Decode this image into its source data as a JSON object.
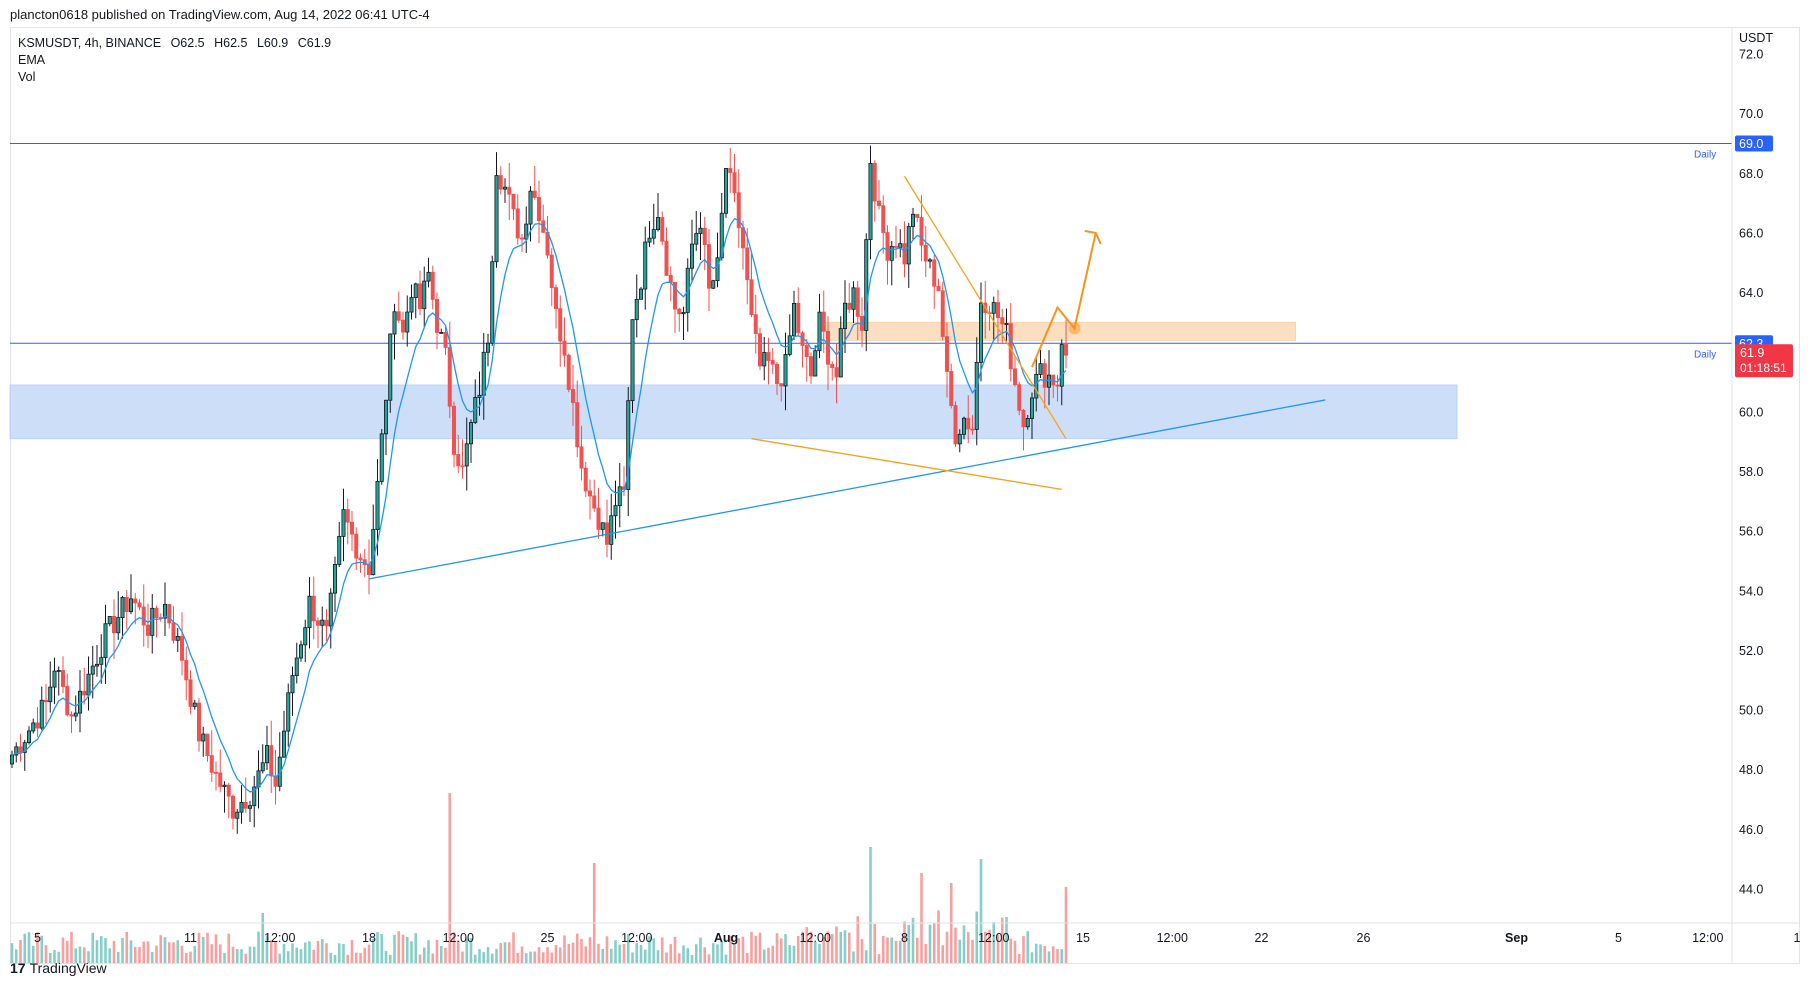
{
  "header": {
    "publish_text": "plancton0618 published on TradingView.com, Aug 14, 2022 06:41 UTC-4"
  },
  "legend": {
    "symbol": "KSMUSDT, 4h, BINANCE",
    "open": "O62.5",
    "high": "H62.5",
    "low": "L60.9",
    "close": "C61.9",
    "indicator1": "EMA",
    "indicator2": "Vol"
  },
  "footer": {
    "brand": "TradingView",
    "logo_glyph": "17"
  },
  "chart_data": {
    "type": "candlestick",
    "title": "KSMUSDT, 4h, BINANCE",
    "currency": "USDT",
    "ylim": [
      43.0,
      73.0
    ],
    "y_ticks": [
      44.0,
      46.0,
      48.0,
      50.0,
      52.0,
      54.0,
      56.0,
      58.0,
      60.0,
      62.0,
      64.0,
      66.0,
      68.0,
      70.0,
      72.0
    ],
    "y_tick_labels": [
      "44.0",
      "46.0",
      "48.0",
      "50.0",
      "52.0",
      "54.0",
      "56.0",
      "58.0",
      "60.0",
      "62.0",
      "64.0",
      "66.0",
      "68.0",
      "70.0",
      "72.0"
    ],
    "x_labels": [
      {
        "label": "5",
        "bar": 6
      },
      {
        "label": "11",
        "bar": 42
      },
      {
        "label": "12:00",
        "bar": 63
      },
      {
        "label": "18",
        "bar": 84
      },
      {
        "label": "12:00",
        "bar": 105
      },
      {
        "label": "25",
        "bar": 126
      },
      {
        "label": "12:00",
        "bar": 147
      },
      {
        "label": "Aug",
        "bar": 168
      },
      {
        "label": "12:00",
        "bar": 189
      },
      {
        "label": "8",
        "bar": 210
      },
      {
        "label": "12:00",
        "bar": 231
      },
      {
        "label": "15",
        "bar": 252
      },
      {
        "label": "12:00",
        "bar": 273
      },
      {
        "label": "22",
        "bar": 294
      },
      {
        "label": "26",
        "bar": 318
      },
      {
        "label": "Sep",
        "bar": 354
      },
      {
        "label": "5",
        "bar": 378
      },
      {
        "label": "12:00",
        "bar": 399
      },
      {
        "label": "1",
        "bar": 420
      }
    ],
    "last_bar_index": 248,
    "price_series": {
      "anchors": [
        [
          0,
          48.5
        ],
        [
          8,
          50.2
        ],
        [
          10,
          51.5
        ],
        [
          14,
          49.8
        ],
        [
          22,
          52.5
        ],
        [
          28,
          53.8
        ],
        [
          32,
          52.8
        ],
        [
          36,
          53.5
        ],
        [
          40,
          51.8
        ],
        [
          44,
          49.2
        ],
        [
          48,
          47.8
        ],
        [
          52,
          46.7
        ],
        [
          56,
          47.2
        ],
        [
          60,
          48.4
        ],
        [
          62,
          47.5
        ],
        [
          66,
          51.2
        ],
        [
          70,
          53.6
        ],
        [
          74,
          52.5
        ],
        [
          78,
          56.5
        ],
        [
          82,
          55.2
        ],
        [
          84,
          54.8
        ],
        [
          86,
          57.5
        ],
        [
          88,
          60.6
        ],
        [
          90,
          63.8
        ],
        [
          92,
          62.6
        ],
        [
          94,
          64.2
        ],
        [
          96,
          63.5
        ],
        [
          98,
          64.6
        ],
        [
          100,
          63.0
        ],
        [
          102,
          61.8
        ],
        [
          104,
          59.0
        ],
        [
          106,
          58.0
        ],
        [
          108,
          59.5
        ],
        [
          110,
          60.8
        ],
        [
          112,
          62.6
        ],
        [
          114,
          68.3
        ],
        [
          116,
          67.5
        ],
        [
          118,
          66.5
        ],
        [
          120,
          65.8
        ],
        [
          122,
          67.6
        ],
        [
          124,
          66.8
        ],
        [
          126,
          65.5
        ],
        [
          128,
          63.2
        ],
        [
          130,
          62.2
        ],
        [
          132,
          60.2
        ],
        [
          134,
          58.2
        ],
        [
          136,
          57.2
        ],
        [
          138,
          56.5
        ],
        [
          140,
          55.6
        ],
        [
          142,
          57.0
        ],
        [
          144,
          57.2
        ],
        [
          146,
          63.3
        ],
        [
          148,
          64.5
        ],
        [
          150,
          66.2
        ],
        [
          152,
          66.8
        ],
        [
          154,
          65.0
        ],
        [
          156,
          63.5
        ],
        [
          158,
          63.3
        ],
        [
          160,
          65.6
        ],
        [
          162,
          66.5
        ],
        [
          164,
          64.0
        ],
        [
          166,
          64.8
        ],
        [
          168,
          68.2
        ],
        [
          170,
          67.0
        ],
        [
          172,
          65.5
        ],
        [
          174,
          63.0
        ],
        [
          176,
          61.5
        ],
        [
          178,
          61.6
        ],
        [
          180,
          61.0
        ],
        [
          182,
          61.5
        ],
        [
          184,
          63.5
        ],
        [
          186,
          62.0
        ],
        [
          188,
          61.2
        ],
        [
          190,
          63.0
        ],
        [
          192,
          62.0
        ],
        [
          194,
          61.2
        ],
        [
          196,
          63.5
        ],
        [
          198,
          64.0
        ],
        [
          200,
          63.0
        ],
        [
          202,
          68.5
        ],
        [
          204,
          66.5
        ],
        [
          206,
          65.5
        ],
        [
          208,
          65.8
        ],
        [
          210,
          65.2
        ],
        [
          212,
          66.8
        ],
        [
          214,
          65.5
        ],
        [
          216,
          64.8
        ],
        [
          218,
          64.2
        ],
        [
          220,
          61.0
        ],
        [
          222,
          59.3
        ],
        [
          224,
          59.8
        ],
        [
          226,
          59.5
        ],
        [
          228,
          63.8
        ],
        [
          230,
          63.7
        ],
        [
          232,
          63.2
        ],
        [
          234,
          62.6
        ],
        [
          236,
          61.0
        ],
        [
          238,
          59.6
        ],
        [
          240,
          60.8
        ],
        [
          242,
          61.3
        ],
        [
          244,
          61.2
        ],
        [
          246,
          61.0
        ],
        [
          247,
          62.5
        ],
        [
          248,
          61.9
        ]
      ],
      "note": "Close-price path read off the candles; individual OHLC candles are approximated from this path."
    },
    "ema": {
      "name": "EMA",
      "length_approx": 9
    },
    "volume": {
      "name": "Vol",
      "notable_spikes": [
        {
          "bar": 59,
          "relative": 0.25
        },
        {
          "bar": 103,
          "relative": 0.85
        },
        {
          "bar": 137,
          "relative": 0.5
        },
        {
          "bar": 202,
          "relative": 0.58
        },
        {
          "bar": 214,
          "relative": 0.45
        },
        {
          "bar": 221,
          "relative": 0.4
        },
        {
          "bar": 228,
          "relative": 0.52
        },
        {
          "bar": 248,
          "relative": 0.38
        }
      ]
    },
    "horizontal_lines": [
      {
        "price": 69.0,
        "label": "Daily",
        "value_label": "69.0",
        "color": "#2962ff"
      },
      {
        "price": 62.3,
        "label": "Daily",
        "value_label": "62.3",
        "color": "#2962ff"
      }
    ],
    "current_price": {
      "value": 61.9,
      "label": "61.9",
      "countdown": "01:18:51",
      "color": "#f23645"
    },
    "zones": [
      {
        "name": "support-zone",
        "price_low": 59.1,
        "price_high": 60.9,
        "bar_start": 0,
        "bar_end": 340,
        "color": "#bcd3f7"
      },
      {
        "name": "resistance-zone",
        "price_low": 62.4,
        "price_high": 63.0,
        "bar_start": 192,
        "bar_end": 302,
        "color": "#fbd3ab"
      }
    ],
    "trendlines": [
      {
        "name": "rising-trendline",
        "from": [
          84,
          54.4
        ],
        "to": [
          309,
          60.4
        ],
        "color": "#2196f3"
      },
      {
        "name": "wedge-upper",
        "from": [
          210,
          67.9
        ],
        "to": [
          248,
          59.1
        ],
        "color": "#f7a21b"
      },
      {
        "name": "wedge-lower",
        "from": [
          174,
          59.1
        ],
        "to": [
          247,
          57.4
        ],
        "color": "#f7a21b"
      }
    ],
    "projection_path": [
      [
        240,
        61.5
      ],
      [
        246,
        63.5
      ],
      [
        250,
        62.8
      ],
      [
        255,
        66.0
      ]
    ],
    "colors": {
      "up": "#26a69a",
      "down": "#ef5350",
      "ema": "#2196f3",
      "accent": "#2962ff",
      "candle_body_up": "#131722",
      "candle_body_down": "#ef5350"
    }
  }
}
